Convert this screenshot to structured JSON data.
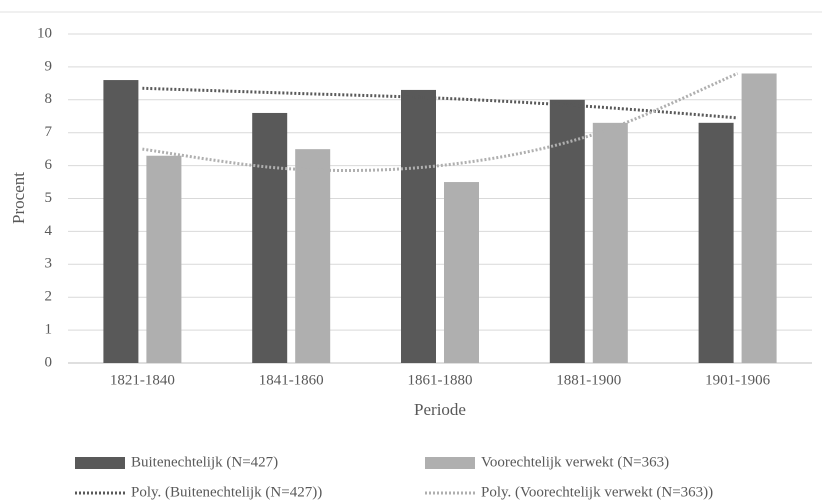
{
  "chart_data": {
    "type": "bar",
    "categories": [
      "1821-1840",
      "1841-1860",
      "1861-1880",
      "1881-1900",
      "1901-1906"
    ],
    "series": [
      {
        "name": "Buitenechtelijk (N=427)",
        "color": "#595959",
        "values": [
          8.6,
          7.6,
          8.3,
          8.0,
          7.3
        ]
      },
      {
        "name": "Voorechtelijk verwekt (N=363)",
        "color": "#afafaf",
        "values": [
          6.3,
          6.5,
          5.5,
          7.3,
          8.8
        ]
      },
      {
        "name": "Poly. (Buitenechtelijk (N=427))",
        "type": "line",
        "dotted": true,
        "color": "#595959",
        "values": [
          8.35,
          8.2,
          8.05,
          7.8,
          7.45
        ]
      },
      {
        "name": "Poly. (Voorechtelijk verwekt (N=363))",
        "type": "line",
        "dotted": true,
        "color": "#afafaf",
        "values": [
          6.5,
          5.9,
          6.0,
          6.9,
          8.8
        ]
      }
    ],
    "ylabel": "Procent",
    "xlabel": "Periode",
    "ylim": [
      0,
      10
    ],
    "yticks": [
      0,
      1,
      2,
      3,
      4,
      5,
      6,
      7,
      8,
      9,
      10
    ],
    "grid": true,
    "legend": "bottom"
  }
}
